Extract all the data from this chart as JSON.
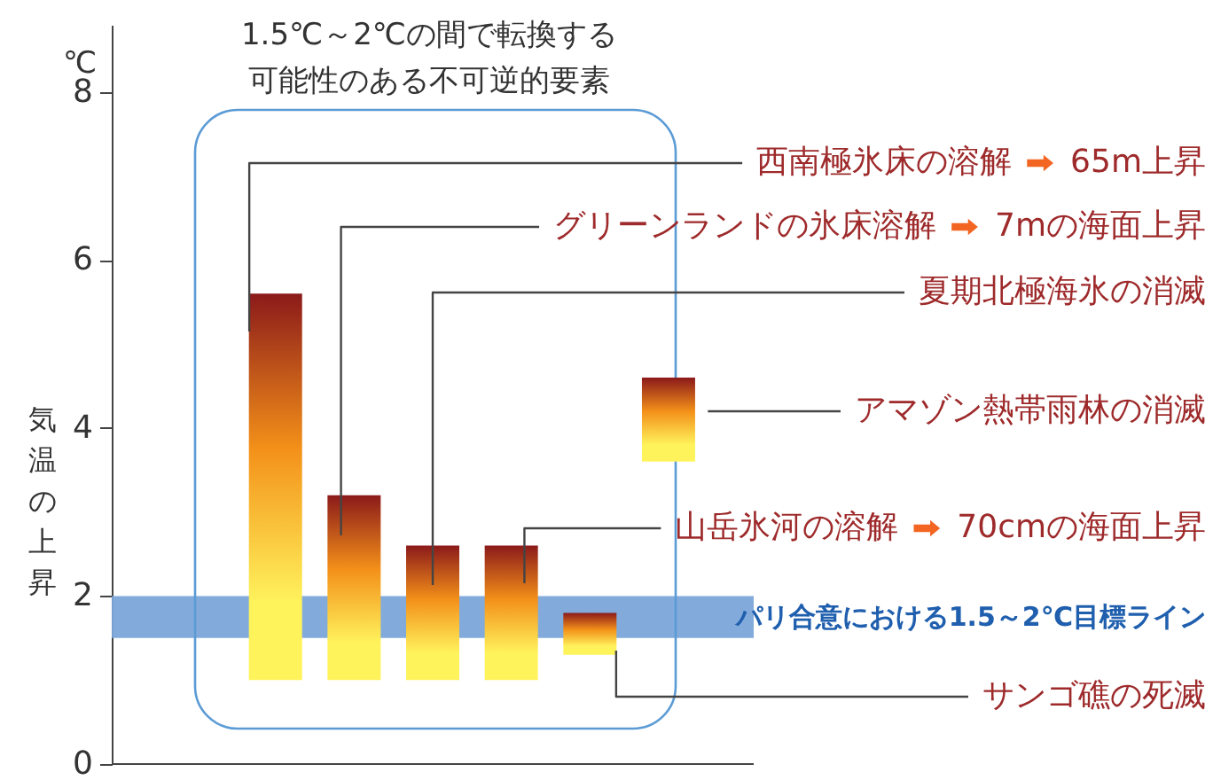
{
  "chart_data": {
    "type": "bar",
    "title": "1.5℃～2℃の間で転換する",
    "subtitle": "可能性のある不可逆的要素",
    "ylabel": "気温の上昇",
    "categories": [
      null,
      null,
      null,
      null,
      null,
      null,
      null
    ],
    "values": [
      null,
      4.6,
      2.2,
      1.6,
      1.6,
      0.5,
      1.0
    ],
    "base": [
      null,
      1,
      1,
      1,
      1,
      1.3,
      3.6
    ],
    "color": "#f39019",
    "ylim": [
      0,
      8.8
    ],
    "yticks": [
      0,
      2,
      4,
      6,
      8
    ],
    "bands": [
      {
        "axis": "y",
        "from": 1.5,
        "to": 2,
        "label": "パリ合意における1.5～2℃目標ライン",
        "color": "#7ba7d9"
      }
    ],
    "annotations": [
      "℃",
      "西南極氷床の溶解",
      "65m上昇",
      "グリーンランドの氷床溶解",
      "7mの海面上昇",
      "夏期北極海氷の消滅",
      "アマゾン熱帯雨林の消滅",
      "山岳氷河の溶解",
      "70cmの海面上昇",
      "サンゴ礁の死滅"
    ]
  }
}
